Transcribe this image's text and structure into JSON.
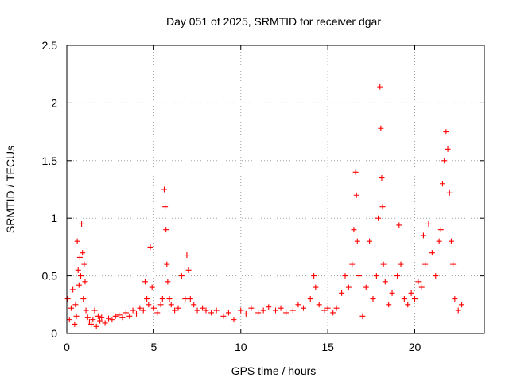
{
  "chart_data": {
    "type": "scatter",
    "title": "Day 051 of 2025, SRMTID for receiver dgar",
    "xlabel": "GPS time / hours",
    "ylabel": "SRMTID / TECUs",
    "xlim": [
      0,
      24
    ],
    "ylim": [
      0,
      2.5
    ],
    "grid": true,
    "marker": "+",
    "series_color": "#ff0000",
    "x_ticks": [
      {
        "value": 0,
        "label": "0"
      },
      {
        "value": 5,
        "label": "5"
      },
      {
        "value": 10,
        "label": "10"
      },
      {
        "value": 15,
        "label": "15"
      },
      {
        "value": 20,
        "label": "20"
      }
    ],
    "y_ticks": [
      {
        "value": 0,
        "label": "0"
      },
      {
        "value": 0.5,
        "label": "0.5"
      },
      {
        "value": 1,
        "label": "1"
      },
      {
        "value": 1.5,
        "label": "1.5"
      },
      {
        "value": 2,
        "label": "2"
      },
      {
        "value": 2.5,
        "label": "2.5"
      }
    ],
    "series": [
      {
        "name": "SRMTID",
        "points": [
          [
            0.05,
            0.3
          ],
          [
            0.15,
            0.12
          ],
          [
            0.25,
            0.22
          ],
          [
            0.35,
            0.38
          ],
          [
            0.45,
            0.08
          ],
          [
            0.5,
            0.25
          ],
          [
            0.55,
            0.15
          ],
          [
            0.6,
            0.8
          ],
          [
            0.65,
            0.55
          ],
          [
            0.7,
            0.42
          ],
          [
            0.75,
            0.66
          ],
          [
            0.8,
            0.5
          ],
          [
            0.85,
            0.95
          ],
          [
            0.9,
            0.7
          ],
          [
            0.95,
            0.3
          ],
          [
            1.0,
            0.6
          ],
          [
            1.05,
            0.45
          ],
          [
            1.1,
            0.2
          ],
          [
            1.2,
            0.14
          ],
          [
            1.3,
            0.1
          ],
          [
            1.4,
            0.08
          ],
          [
            1.5,
            0.12
          ],
          [
            1.6,
            0.2
          ],
          [
            1.7,
            0.06
          ],
          [
            1.8,
            0.15
          ],
          [
            1.9,
            0.11
          ],
          [
            2.0,
            0.14
          ],
          [
            2.2,
            0.09
          ],
          [
            2.4,
            0.13
          ],
          [
            2.6,
            0.12
          ],
          [
            2.8,
            0.15
          ],
          [
            3.0,
            0.16
          ],
          [
            3.2,
            0.14
          ],
          [
            3.4,
            0.18
          ],
          [
            3.6,
            0.15
          ],
          [
            3.8,
            0.2
          ],
          [
            4.0,
            0.17
          ],
          [
            4.2,
            0.22
          ],
          [
            4.4,
            0.2
          ],
          [
            4.5,
            0.45
          ],
          [
            4.6,
            0.3
          ],
          [
            4.7,
            0.25
          ],
          [
            4.8,
            0.75
          ],
          [
            4.9,
            0.4
          ],
          [
            5.0,
            0.22
          ],
          [
            5.2,
            0.18
          ],
          [
            5.4,
            0.25
          ],
          [
            5.5,
            0.3
          ],
          [
            5.6,
            1.25
          ],
          [
            5.65,
            1.1
          ],
          [
            5.7,
            0.9
          ],
          [
            5.75,
            0.6
          ],
          [
            5.8,
            0.45
          ],
          [
            5.9,
            0.3
          ],
          [
            6.0,
            0.25
          ],
          [
            6.2,
            0.2
          ],
          [
            6.4,
            0.22
          ],
          [
            6.6,
            0.5
          ],
          [
            6.8,
            0.3
          ],
          [
            6.9,
            0.68
          ],
          [
            7.0,
            0.55
          ],
          [
            7.1,
            0.3
          ],
          [
            7.3,
            0.25
          ],
          [
            7.5,
            0.2
          ],
          [
            7.8,
            0.22
          ],
          [
            8.0,
            0.2
          ],
          [
            8.3,
            0.18
          ],
          [
            8.6,
            0.2
          ],
          [
            9.0,
            0.15
          ],
          [
            9.3,
            0.18
          ],
          [
            9.6,
            0.12
          ],
          [
            10.0,
            0.2
          ],
          [
            10.3,
            0.17
          ],
          [
            10.6,
            0.22
          ],
          [
            11.0,
            0.18
          ],
          [
            11.3,
            0.2
          ],
          [
            11.6,
            0.23
          ],
          [
            12.0,
            0.2
          ],
          [
            12.3,
            0.22
          ],
          [
            12.6,
            0.18
          ],
          [
            13.0,
            0.2
          ],
          [
            13.3,
            0.25
          ],
          [
            13.6,
            0.22
          ],
          [
            14.0,
            0.3
          ],
          [
            14.2,
            0.5
          ],
          [
            14.3,
            0.4
          ],
          [
            14.5,
            0.25
          ],
          [
            14.8,
            0.2
          ],
          [
            15.0,
            0.22
          ],
          [
            15.3,
            0.18
          ],
          [
            15.5,
            0.22
          ],
          [
            15.8,
            0.35
          ],
          [
            16.0,
            0.5
          ],
          [
            16.2,
            0.4
          ],
          [
            16.4,
            0.6
          ],
          [
            16.5,
            0.9
          ],
          [
            16.6,
            1.4
          ],
          [
            16.65,
            1.2
          ],
          [
            16.7,
            0.8
          ],
          [
            16.8,
            0.5
          ],
          [
            17.0,
            0.15
          ],
          [
            17.2,
            0.4
          ],
          [
            17.4,
            0.8
          ],
          [
            17.6,
            0.3
          ],
          [
            17.8,
            0.5
          ],
          [
            17.9,
            1.0
          ],
          [
            18.0,
            2.14
          ],
          [
            18.05,
            1.78
          ],
          [
            18.1,
            1.35
          ],
          [
            18.15,
            1.1
          ],
          [
            18.2,
            0.6
          ],
          [
            18.3,
            0.45
          ],
          [
            18.5,
            0.25
          ],
          [
            18.7,
            0.35
          ],
          [
            19.0,
            0.5
          ],
          [
            19.1,
            0.94
          ],
          [
            19.2,
            0.6
          ],
          [
            19.4,
            0.3
          ],
          [
            19.6,
            0.25
          ],
          [
            19.8,
            0.35
          ],
          [
            20.0,
            0.3
          ],
          [
            20.2,
            0.45
          ],
          [
            20.4,
            0.4
          ],
          [
            20.5,
            0.85
          ],
          [
            20.6,
            0.6
          ],
          [
            20.8,
            0.95
          ],
          [
            21.0,
            0.7
          ],
          [
            21.2,
            0.5
          ],
          [
            21.4,
            0.8
          ],
          [
            21.5,
            0.9
          ],
          [
            21.6,
            1.3
          ],
          [
            21.7,
            1.5
          ],
          [
            21.8,
            1.75
          ],
          [
            21.9,
            1.6
          ],
          [
            22.0,
            1.22
          ],
          [
            22.1,
            0.8
          ],
          [
            22.2,
            0.6
          ],
          [
            22.3,
            0.3
          ],
          [
            22.5,
            0.2
          ],
          [
            22.7,
            0.25
          ]
        ]
      }
    ]
  }
}
